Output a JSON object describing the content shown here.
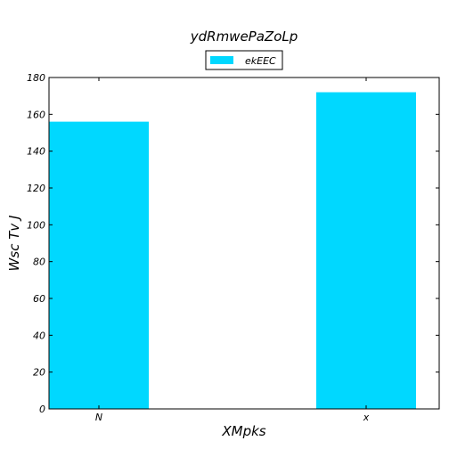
{
  "chart_data": {
    "type": "bar",
    "title": "ydRmwePaZoLp",
    "xlabel": "XMpks",
    "ylabel": "Wsc Tv J",
    "categories": [
      "N",
      "x"
    ],
    "series": [
      {
        "name": "ekEEC",
        "values": [
          156,
          172
        ],
        "color": "#00d8ff"
      }
    ],
    "ylim": [
      0,
      180
    ],
    "yticks": [
      0,
      20,
      40,
      60,
      80,
      100,
      120,
      140,
      160,
      180
    ],
    "grid": false,
    "legend": "top-center"
  }
}
